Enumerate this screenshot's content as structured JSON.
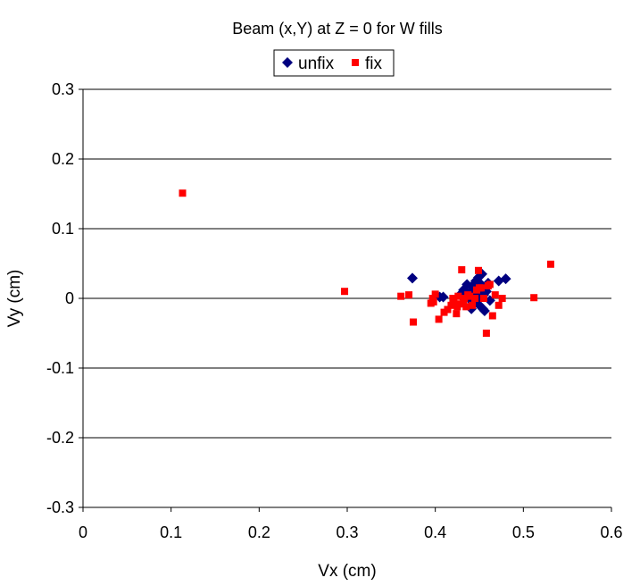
{
  "chart_data": {
    "type": "scatter",
    "title": "Beam (x,Y) at Z = 0 for W fills",
    "xlabel": "Vx (cm)",
    "ylabel": "Vy (cm)",
    "xlim": [
      0,
      0.6
    ],
    "ylim": [
      -0.3,
      0.3
    ],
    "xticks": [
      "0",
      "0.1",
      "0.2",
      "0.3",
      "0.4",
      "0.5",
      "0.6"
    ],
    "yticks": [
      "-0.3",
      "-0.2",
      "-0.1",
      "0",
      "0.1",
      "0.2",
      "0.3"
    ],
    "grid": "horizontal",
    "legend_position": "top-center",
    "series": [
      {
        "name": "unfix",
        "color": "#000080",
        "marker": "diamond",
        "points": [
          [
            0.374,
            0.029
          ],
          [
            0.405,
            0.002
          ],
          [
            0.409,
            0.002
          ],
          [
            0.428,
            0.005
          ],
          [
            0.432,
            0.012
          ],
          [
            0.436,
            0.02
          ],
          [
            0.438,
            0.0
          ],
          [
            0.44,
            0.01
          ],
          [
            0.441,
            -0.015
          ],
          [
            0.442,
            0.018
          ],
          [
            0.444,
            0.005
          ],
          [
            0.445,
            -0.005
          ],
          [
            0.446,
            0.025
          ],
          [
            0.447,
            0.012
          ],
          [
            0.448,
            0.0
          ],
          [
            0.449,
            0.03
          ],
          [
            0.45,
            -0.01
          ],
          [
            0.451,
            0.008
          ],
          [
            0.452,
            0.02
          ],
          [
            0.453,
            0.035
          ],
          [
            0.454,
            -0.015
          ],
          [
            0.455,
            0.005
          ],
          [
            0.456,
            -0.018
          ],
          [
            0.458,
            0.01
          ],
          [
            0.46,
            0.022
          ],
          [
            0.462,
            -0.003
          ],
          [
            0.472,
            0.025
          ],
          [
            0.48,
            0.028
          ]
        ]
      },
      {
        "name": "fix",
        "color": "#ff0000",
        "marker": "square",
        "points": [
          [
            0.113,
            0.151
          ],
          [
            0.297,
            0.01
          ],
          [
            0.361,
            0.003
          ],
          [
            0.37,
            0.005
          ],
          [
            0.375,
            -0.034
          ],
          [
            0.395,
            -0.007
          ],
          [
            0.397,
            0.0
          ],
          [
            0.398,
            -0.005
          ],
          [
            0.4,
            0.006
          ],
          [
            0.404,
            -0.03
          ],
          [
            0.41,
            -0.02
          ],
          [
            0.414,
            -0.016
          ],
          [
            0.418,
            -0.01
          ],
          [
            0.42,
            0.0
          ],
          [
            0.421,
            -0.005
          ],
          [
            0.424,
            -0.022
          ],
          [
            0.425,
            -0.012
          ],
          [
            0.426,
            0.003
          ],
          [
            0.428,
            -0.008
          ],
          [
            0.43,
            0.041
          ],
          [
            0.432,
            -0.005
          ],
          [
            0.433,
            0.0
          ],
          [
            0.435,
            -0.012
          ],
          [
            0.437,
            0.005
          ],
          [
            0.439,
            0.003
          ],
          [
            0.442,
            -0.01
          ],
          [
            0.445,
            0.0
          ],
          [
            0.447,
            0.012
          ],
          [
            0.449,
            0.04
          ],
          [
            0.45,
            0.015
          ],
          [
            0.452,
            0.015
          ],
          [
            0.455,
            0.0
          ],
          [
            0.458,
            -0.05
          ],
          [
            0.46,
            0.018
          ],
          [
            0.462,
            0.02
          ],
          [
            0.465,
            -0.025
          ],
          [
            0.468,
            0.005
          ],
          [
            0.472,
            -0.01
          ],
          [
            0.476,
            0.0
          ],
          [
            0.512,
            0.001
          ],
          [
            0.531,
            0.049
          ]
        ]
      }
    ]
  }
}
